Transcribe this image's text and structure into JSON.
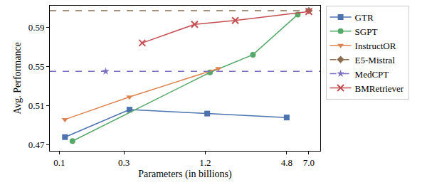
{
  "chart_data": {
    "type": "line",
    "x_label": "Parameters (in billions)",
    "y_label": "Avg. Performance",
    "log": "x",
    "grid": false,
    "legend": "outside right",
    "xlim": [
      0.085,
      8.5
    ],
    "xticks": [
      0.1,
      0.3,
      1.2,
      4.8,
      {
        "value": 7,
        "label": "7.0"
      }
    ],
    "ylim": [
      0.464,
      0.612
    ],
    "yticks": [
      0.47,
      0.51,
      0.55,
      0.59
    ],
    "series": [
      {
        "name": "GTR",
        "color": "#4c72b0",
        "marker": "square",
        "line_style": "solid",
        "x": [
          0.11,
          0.33,
          1.24,
          4.8
        ],
        "values": [
          0.478,
          0.506,
          0.502,
          0.498
        ]
      },
      {
        "name": "SGPT",
        "color": "#55a868",
        "marker": "circle",
        "line_style": "solid",
        "x": [
          0.125,
          1.3,
          2.7,
          5.8
        ],
        "values": [
          0.474,
          0.544,
          0.562,
          0.603
        ]
      },
      {
        "name": "InstructOR",
        "color": "#dd8452",
        "marker": "triangle-down",
        "line_style": "solid",
        "x": [
          0.11,
          0.33,
          1.5
        ],
        "values": [
          0.496,
          0.519,
          0.548
        ]
      },
      {
        "name": "E5-Mistral",
        "color": "#8c6d4f",
        "marker": "diamond",
        "line_style": "dashed",
        "x": [
          7.0
        ],
        "values": [
          0.607
        ]
      },
      {
        "name": "MedCPT",
        "color": "#7b6fc4",
        "marker": "star",
        "line_style": "dashed",
        "x": [
          0.22
        ],
        "values": [
          0.545
        ]
      },
      {
        "name": "BMRetriever",
        "color": "#c44e52",
        "marker": "x",
        "line_style": "solid",
        "x": [
          0.41,
          1.0,
          2.0,
          7.0
        ],
        "values": [
          0.574,
          0.593,
          0.597,
          0.606
        ]
      }
    ]
  }
}
